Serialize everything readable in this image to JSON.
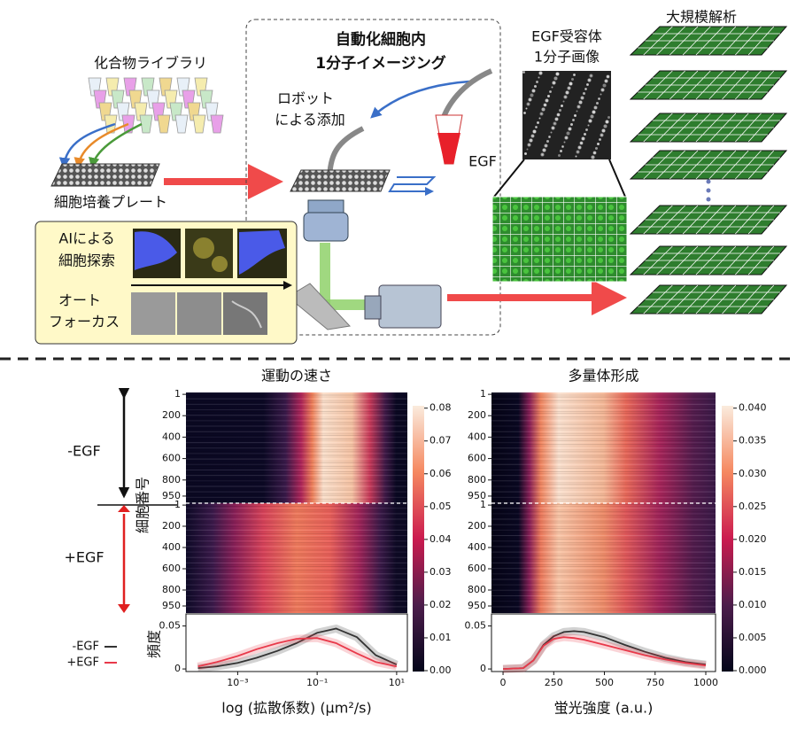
{
  "diagram": {
    "library": "化合物ライブラリ",
    "plate": "細胞培養プレート",
    "title_lines": [
      "自動化細胞内",
      "1分子イメージング"
    ],
    "robot_lines": [
      "ロボット",
      "による添加"
    ],
    "egf": "EGF",
    "receptor_lines": [
      "EGF受容体",
      "1分子画像"
    ],
    "analysis": "大規模解析",
    "ai_lines": [
      "AIによる",
      "細胞探索"
    ],
    "autofocus_lines": [
      "オート",
      "フォーカス"
    ]
  },
  "side_labels": {
    "minus": "-EGF",
    "plus": "+EGF",
    "cell_number": "細胞番号",
    "frequency": "頻度"
  },
  "chart_data": [
    {
      "type": "line",
      "title": "運動の速さ",
      "xlabel": "log (拡散係数) (μm²/s)",
      "log_x": true,
      "x": [
        0.0001,
        0.0003,
        0.001,
        0.003,
        0.01,
        0.03,
        0.1,
        0.3,
        1,
        3,
        10
      ],
      "series": [
        {
          "name": "-EGF",
          "color": "#333333",
          "values": [
            0.001,
            0.003,
            0.007,
            0.013,
            0.021,
            0.03,
            0.042,
            0.047,
            0.037,
            0.016,
            0.005
          ]
        },
        {
          "name": "+EGF",
          "color": "#e8394a",
          "values": [
            0.003,
            0.008,
            0.015,
            0.023,
            0.03,
            0.035,
            0.036,
            0.03,
            0.018,
            0.008,
            0.003
          ]
        }
      ],
      "xlim": [
        5e-05,
        18.6
      ],
      "xticks": [
        {
          "value": 0.001,
          "label": "10⁻³"
        },
        {
          "value": 0.1,
          "label": "10⁻¹"
        },
        {
          "value": 10,
          "label": "10¹"
        }
      ],
      "ylim": [
        -0.003,
        0.064
      ],
      "yticks": [
        0,
        0.05
      ],
      "heatmap_ylim": [
        0,
        1000
      ],
      "heatmap_yticks": [
        1,
        200,
        400,
        600,
        800,
        950
      ],
      "colorbar_lim": [
        0,
        0.081
      ],
      "colorbar_ticks": [
        {
          "value": 0,
          "label": "0.00"
        },
        0.01,
        0.02,
        0.03,
        0.04,
        0.05,
        0.06,
        0.07,
        0.08
      ]
    },
    {
      "type": "line",
      "title": "多量体形成",
      "xlabel": "蛍光強度 (a.u.)",
      "log_x": false,
      "x": [
        0,
        100,
        150,
        200,
        250,
        300,
        350,
        400,
        500,
        600,
        700,
        800,
        900,
        1000
      ],
      "series": [
        {
          "name": "-EGF",
          "color": "#333333",
          "values": [
            0,
            0.001,
            0.01,
            0.028,
            0.038,
            0.043,
            0.044,
            0.043,
            0.037,
            0.028,
            0.02,
            0.013,
            0.008,
            0.005
          ]
        },
        {
          "name": "+EGF",
          "color": "#e8394a",
          "values": [
            0,
            0.001,
            0.01,
            0.027,
            0.035,
            0.037,
            0.036,
            0.034,
            0.028,
            0.022,
            0.016,
            0.011,
            0.007,
            0.004
          ]
        }
      ],
      "xlim": [
        -57,
        1048
      ],
      "xticks": [
        0,
        250,
        500,
        750,
        1000
      ],
      "ylim": [
        -0.003,
        0.064
      ],
      "yticks": [
        0,
        0.05
      ],
      "heatmap_ylim": [
        0,
        1000
      ],
      "heatmap_yticks": [
        1,
        200,
        400,
        600,
        800,
        950
      ],
      "colorbar_lim": [
        0,
        0.0405
      ],
      "colorbar_ticks": [
        {
          "value": 0,
          "label": "0.000"
        },
        0.005,
        {
          "value": 0.01,
          "label": "0.010"
        },
        0.015,
        {
          "value": 0.02,
          "label": "0.020"
        },
        0.025,
        {
          "value": 0.03,
          "label": "0.030"
        },
        0.035,
        {
          "value": 0.04,
          "label": "0.040"
        }
      ]
    }
  ]
}
